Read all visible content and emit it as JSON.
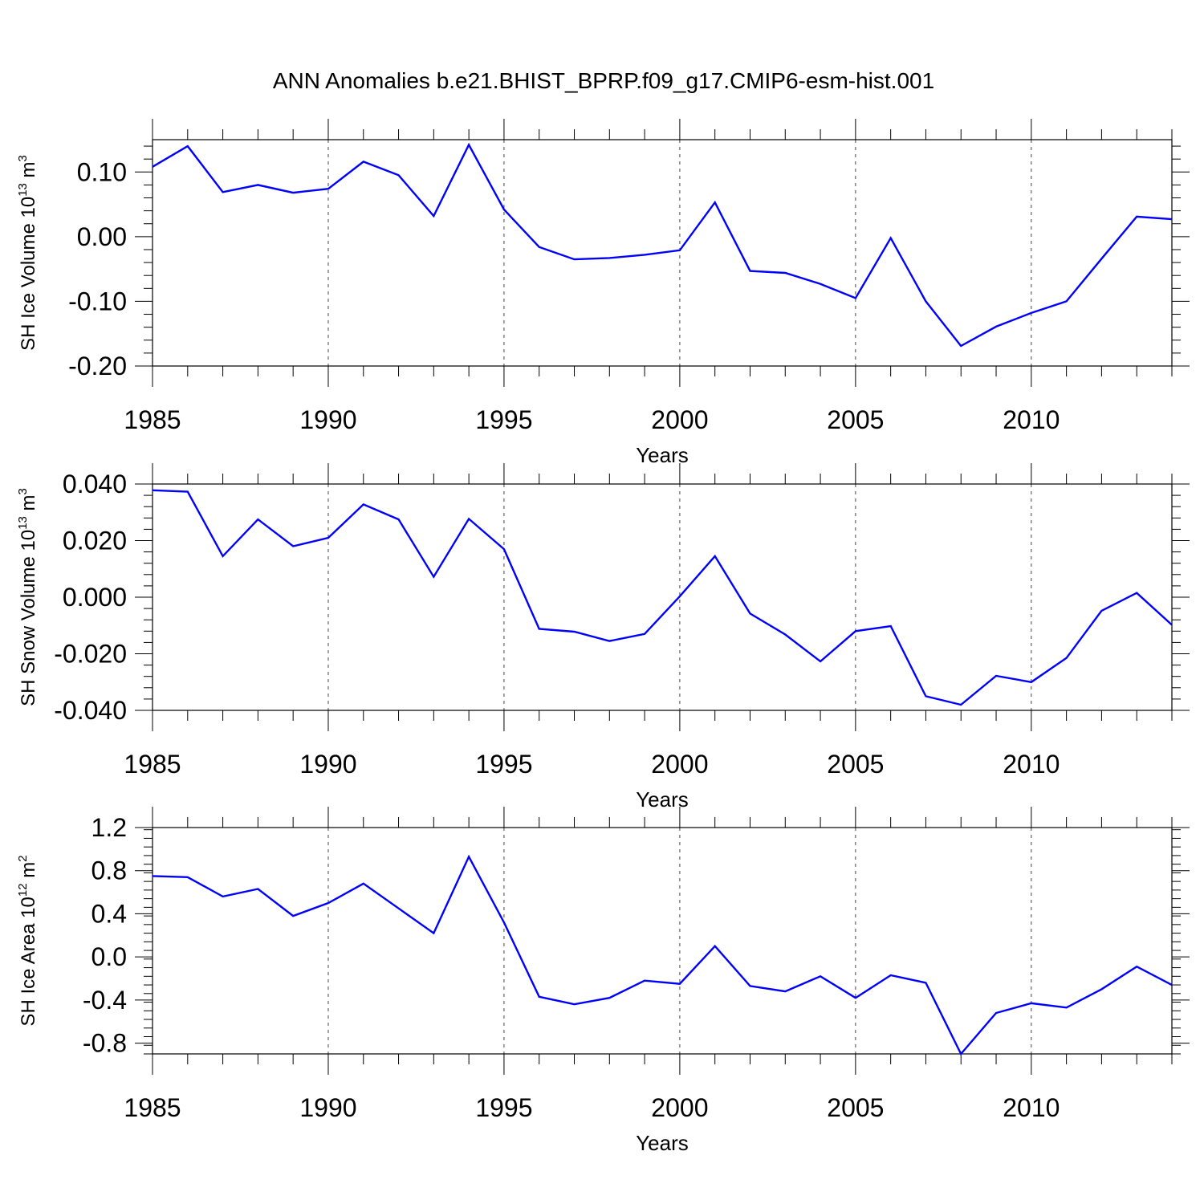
{
  "title": "ANN Anomalies b.e21.BHIST_BPRP.f09_g17.CMIP6-esm-hist.001",
  "line_color": "#0000ff",
  "chart_data": [
    {
      "type": "line",
      "title": "ANN Anomalies b.e21.BHIST_BPRP.f09_g17.CMIP6-esm-hist.001",
      "xlabel": "Years",
      "ylabel": "SH Ice Volume 10",
      "ylabel_exp": "13",
      "ylabel_unit": " m",
      "ylabel_unit_exp": "3",
      "xlim": [
        1985,
        2014
      ],
      "ylim": [
        -0.2,
        0.15
      ],
      "yticks": [
        -0.2,
        -0.1,
        0.0,
        0.1
      ],
      "ytick_labels": [
        "-0.20",
        "-0.10",
        "0.00",
        "0.10"
      ],
      "yminor_step": 0.02,
      "xticks": [
        1985,
        1990,
        1995,
        2000,
        2005,
        2010
      ],
      "xtick_labels": [
        "1985",
        "1990",
        "1995",
        "2000",
        "2005",
        "2010"
      ],
      "x": [
        1985,
        1986,
        1987,
        1988,
        1989,
        1990,
        1991,
        1992,
        1993,
        1994,
        1995,
        1996,
        1997,
        1998,
        1999,
        2000,
        2001,
        2002,
        2003,
        2004,
        2005,
        2006,
        2007,
        2008,
        2009,
        2010,
        2011,
        2012,
        2013,
        2014
      ],
      "values": [
        0.108,
        0.14,
        0.069,
        0.08,
        0.068,
        0.074,
        0.116,
        0.095,
        0.032,
        0.142,
        0.042,
        -0.016,
        -0.035,
        -0.033,
        -0.028,
        -0.021,
        0.053,
        -0.053,
        -0.056,
        -0.073,
        -0.095,
        -0.002,
        -0.1,
        -0.169,
        -0.139,
        -0.118,
        -0.1,
        -0.034,
        0.031,
        0.027
      ]
    },
    {
      "type": "line",
      "xlabel": "Years",
      "ylabel": "SH Snow Volume 10",
      "ylabel_exp": "13",
      "ylabel_unit": " m",
      "ylabel_unit_exp": "3",
      "xlim": [
        1985,
        2014
      ],
      "ylim": [
        -0.04,
        0.04
      ],
      "yticks": [
        -0.04,
        -0.02,
        0.0,
        0.02,
        0.04
      ],
      "ytick_labels": [
        "-0.040",
        "-0.020",
        "0.000",
        "0.020",
        "0.040"
      ],
      "yminor_step": 0.004,
      "xticks": [
        1985,
        1990,
        1995,
        2000,
        2005,
        2010
      ],
      "xtick_labels": [
        "1985",
        "1990",
        "1995",
        "2000",
        "2005",
        "2010"
      ],
      "x": [
        1985,
        1986,
        1987,
        1988,
        1989,
        1990,
        1991,
        1992,
        1993,
        1994,
        1995,
        1996,
        1997,
        1998,
        1999,
        2000,
        2001,
        2002,
        2003,
        2004,
        2005,
        2006,
        2007,
        2008,
        2009,
        2010,
        2011,
        2012,
        2013,
        2014
      ],
      "values": [
        0.0378,
        0.0373,
        0.0145,
        0.0275,
        0.018,
        0.021,
        0.0328,
        0.0275,
        0.0072,
        0.0277,
        0.017,
        -0.0112,
        -0.0122,
        -0.0155,
        -0.013,
        0.0003,
        0.0145,
        -0.0058,
        -0.0132,
        -0.0227,
        -0.012,
        -0.0102,
        -0.035,
        -0.038,
        -0.0278,
        -0.03,
        -0.0215,
        -0.0048,
        0.0015,
        -0.0098
      ]
    },
    {
      "type": "line",
      "xlabel": "Years",
      "ylabel": "SH Ice Area 10",
      "ylabel_exp": "12",
      "ylabel_unit": " m",
      "ylabel_unit_exp": "2",
      "xlim": [
        1985,
        2014
      ],
      "ylim": [
        -0.9,
        1.2
      ],
      "yticks": [
        -0.8,
        -0.4,
        0.0,
        0.4,
        0.8,
        1.2
      ],
      "ytick_labels": [
        "-0.8",
        "-0.4",
        "0.0",
        "0.4",
        "0.8",
        "1.2"
      ],
      "yminor_step": 0.08,
      "xticks": [
        1985,
        1990,
        1995,
        2000,
        2005,
        2010
      ],
      "xtick_labels": [
        "1985",
        "1990",
        "1995",
        "2000",
        "2005",
        "2010"
      ],
      "x": [
        1985,
        1986,
        1987,
        1988,
        1989,
        1990,
        1991,
        1992,
        1993,
        1994,
        1995,
        1996,
        1997,
        1998,
        1999,
        2000,
        2001,
        2002,
        2003,
        2004,
        2005,
        2006,
        2007,
        2008,
        2009,
        2010,
        2011,
        2012,
        2013,
        2014
      ],
      "values": [
        0.75,
        0.74,
        0.56,
        0.63,
        0.38,
        0.5,
        0.68,
        0.45,
        0.22,
        0.93,
        0.32,
        -0.37,
        -0.44,
        -0.38,
        -0.22,
        -0.25,
        0.1,
        -0.27,
        -0.32,
        -0.18,
        -0.38,
        -0.17,
        -0.24,
        -0.9,
        -0.52,
        -0.43,
        -0.47,
        -0.3,
        -0.09,
        -0.26
      ]
    }
  ]
}
